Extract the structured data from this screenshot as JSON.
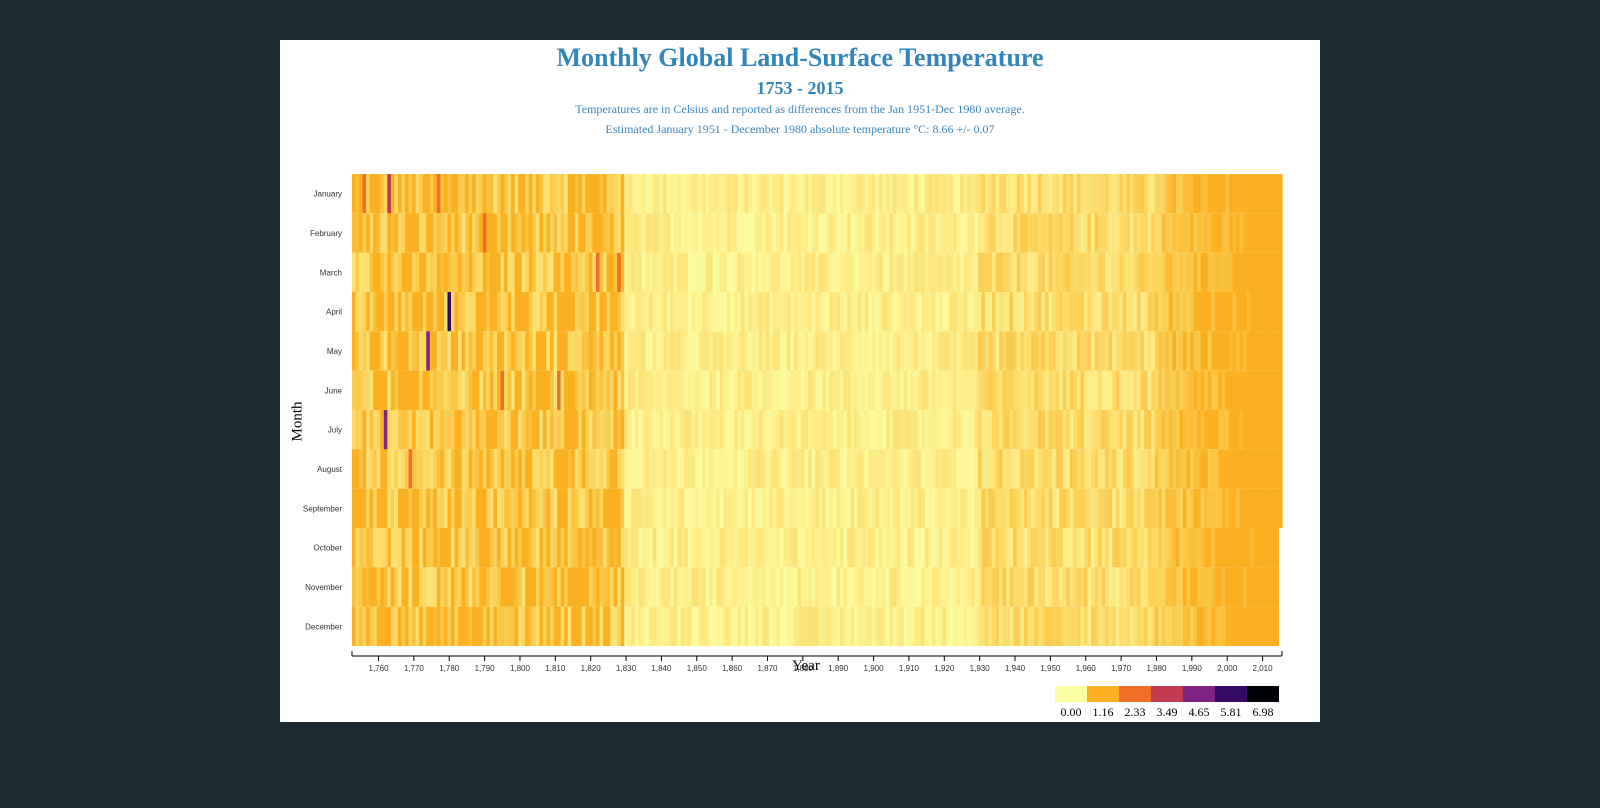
{
  "chart_data": {
    "type": "heatmap",
    "title": "Monthly Global Land-Surface Temperature",
    "subtitle": "1753 - 2015",
    "description": [
      "Temperatures are in Celsius and reported as differences from the Jan 1951-Dec 1980 average.",
      "Estimated January 1951 - December 1980 absolute temperature °C: 8.66 +/- 0.07"
    ],
    "xlabel": "Year",
    "ylabel": "Month",
    "x_range": [
      1753,
      2015
    ],
    "x_ticks": [
      1760,
      1770,
      1780,
      1790,
      1800,
      1810,
      1820,
      1830,
      1840,
      1850,
      1860,
      1870,
      1880,
      1890,
      1900,
      1910,
      1920,
      1930,
      1940,
      1950,
      1960,
      1970,
      1980,
      1990,
      2000,
      2010
    ],
    "x_tick_labels": [
      "1,760",
      "1,770",
      "1,780",
      "1,790",
      "1,800",
      "1,810",
      "1,820",
      "1,830",
      "1,840",
      "1,850",
      "1,860",
      "1,870",
      "1,880",
      "1,890",
      "1,900",
      "1,910",
      "1,920",
      "1,930",
      "1,940",
      "1,950",
      "1,960",
      "1,970",
      "1,980",
      "1,990",
      "2,000",
      "2,010"
    ],
    "months": [
      "January",
      "February",
      "March",
      "April",
      "May",
      "June",
      "July",
      "August",
      "September",
      "October",
      "November",
      "December"
    ],
    "legend": {
      "thresholds": [
        "0.00",
        "1.16",
        "2.33",
        "3.49",
        "4.65",
        "5.81",
        "6.98"
      ],
      "colors": [
        "#fcfea4",
        "#fbb021",
        "#f06e27",
        "#c23a50",
        "#7e2482",
        "#350a62",
        "#000004"
      ]
    },
    "notable_cells": [
      {
        "year": 1756,
        "month": "January",
        "value": 2.5
      },
      {
        "year": 1763,
        "month": "January",
        "value": 3.6
      },
      {
        "year": 1777,
        "month": "January",
        "value": 3.0
      },
      {
        "year": 1780,
        "month": "April",
        "value": 5.9
      },
      {
        "year": 1774,
        "month": "May",
        "value": 5.2
      },
      {
        "year": 1762,
        "month": "July",
        "value": 4.8
      },
      {
        "year": 1822,
        "month": "March",
        "value": 2.6
      }
    ]
  }
}
